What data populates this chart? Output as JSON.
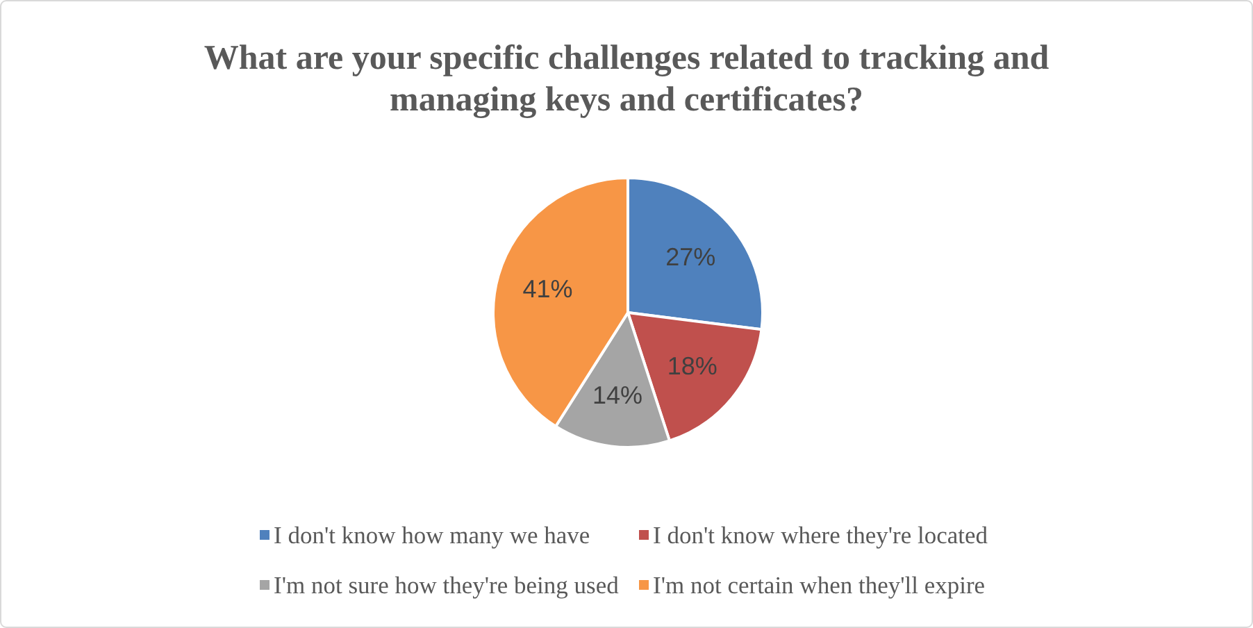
{
  "chart_data": {
    "type": "pie",
    "title": "What are your specific challenges related to tracking and managing keys and certificates?",
    "categories": [
      "I don't know how many we have",
      "I don't know where they're located",
      "I'm not sure how they're being used",
      "I'm not certain when they'll expire"
    ],
    "values": [
      27,
      18,
      14,
      41
    ],
    "value_labels": [
      "27%",
      "18%",
      "14%",
      "41%"
    ],
    "colors": [
      "#4f81bd",
      "#c0504d",
      "#a5a5a5",
      "#f79646"
    ],
    "legend": "bottom"
  }
}
